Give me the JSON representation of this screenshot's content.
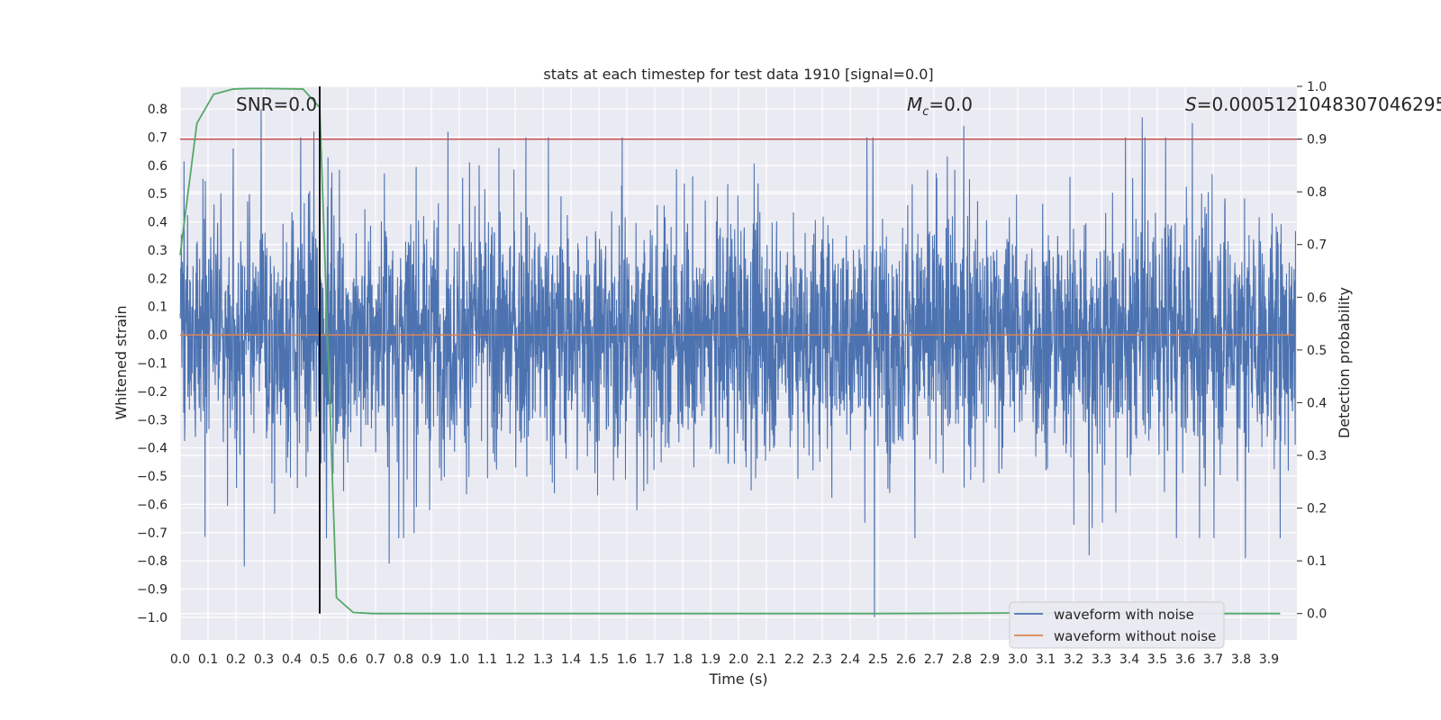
{
  "chart_data": {
    "type": "line",
    "title": "stats at each timestep for test data 1910 [signal=0.0]",
    "xlabel": "Time (s)",
    "ylabel": "Whitened strain",
    "y2label": "Detection probability",
    "xlim": [
      0.0,
      4.0
    ],
    "ylim": [
      -1.08,
      0.88
    ],
    "y2lim": [
      -0.05,
      1.0
    ],
    "xticks": [
      "0.0",
      "0.1",
      "0.2",
      "0.3",
      "0.4",
      "0.5",
      "0.6",
      "0.7",
      "0.8",
      "0.9",
      "1.0",
      "1.1",
      "1.2",
      "1.3",
      "1.4",
      "1.5",
      "1.6",
      "1.7",
      "1.8",
      "1.9",
      "2.0",
      "2.1",
      "2.2",
      "2.3",
      "2.4",
      "2.5",
      "2.6",
      "2.7",
      "2.8",
      "2.9",
      "3.0",
      "3.1",
      "3.2",
      "3.3",
      "3.4",
      "3.5",
      "3.6",
      "3.7",
      "3.8",
      "3.9"
    ],
    "yticks": [
      "0.8",
      "0.7",
      "0.6",
      "0.5",
      "0.4",
      "0.3",
      "0.2",
      "0.1",
      "0.0",
      "−0.1",
      "−0.2",
      "−0.3",
      "−0.4",
      "−0.5",
      "−0.6",
      "−0.7",
      "−0.8",
      "−0.9",
      "−1.0"
    ],
    "y2ticks": [
      "1.0",
      "0.9",
      "0.8",
      "0.7",
      "0.6",
      "0.5",
      "0.4",
      "0.3",
      "0.2",
      "0.1",
      "0.0"
    ],
    "annotations": {
      "snr": "SNR=0.0",
      "mc": "=0.0",
      "mc_symbol": "M",
      "mc_sub": "c",
      "s": "=0.0005121048307046295",
      "s_symbol": "S"
    },
    "legend": {
      "placement": "lower-right",
      "entries": [
        "waveform with noise",
        "waveform without noise"
      ]
    },
    "series": [
      {
        "name": "waveform with noise",
        "color": "#4c72b0",
        "note": "noise trace, roughly within ±0.5 with spikes; min ≈ -1.0 near t=2.49, max ≈ 0.8 near t=0.29",
        "spikes": [
          {
            "t": 0.19,
            "v": 0.66
          },
          {
            "t": 0.23,
            "v": -0.82
          },
          {
            "t": 0.29,
            "v": 0.8
          },
          {
            "t": 0.48,
            "v": 0.72
          },
          {
            "t": 0.75,
            "v": -0.81
          },
          {
            "t": 0.96,
            "v": 0.72
          },
          {
            "t": 1.24,
            "v": 0.7
          },
          {
            "t": 2.49,
            "v": -1.0
          },
          {
            "t": 2.81,
            "v": 0.74
          },
          {
            "t": 3.26,
            "v": -0.78
          },
          {
            "t": 3.45,
            "v": 0.77
          },
          {
            "t": 3.63,
            "v": 0.75
          },
          {
            "t": 3.82,
            "v": -0.79
          }
        ]
      },
      {
        "name": "waveform without noise",
        "color": "#dd8452",
        "x": [
          0.0,
          3.99
        ],
        "values": [
          0.0,
          0.0
        ]
      },
      {
        "name": "detection probability",
        "axis": "right",
        "color": "#55a868",
        "x": [
          0.0,
          0.06,
          0.12,
          0.19,
          0.25,
          0.31,
          0.44,
          0.5,
          0.56,
          0.62,
          0.69,
          1.5,
          2.5,
          3.0,
          3.5,
          3.94
        ],
        "values": [
          0.68,
          0.93,
          0.985,
          0.995,
          0.996,
          0.996,
          0.995,
          0.96,
          0.03,
          0.002,
          0.0,
          0.0,
          0.0,
          0.001,
          0.0,
          0.0
        ]
      }
    ],
    "threshold": {
      "axis": "right",
      "value": 0.9,
      "color": "#c44e52"
    },
    "marker_line": {
      "x": 0.5,
      "color": "#000000"
    }
  }
}
